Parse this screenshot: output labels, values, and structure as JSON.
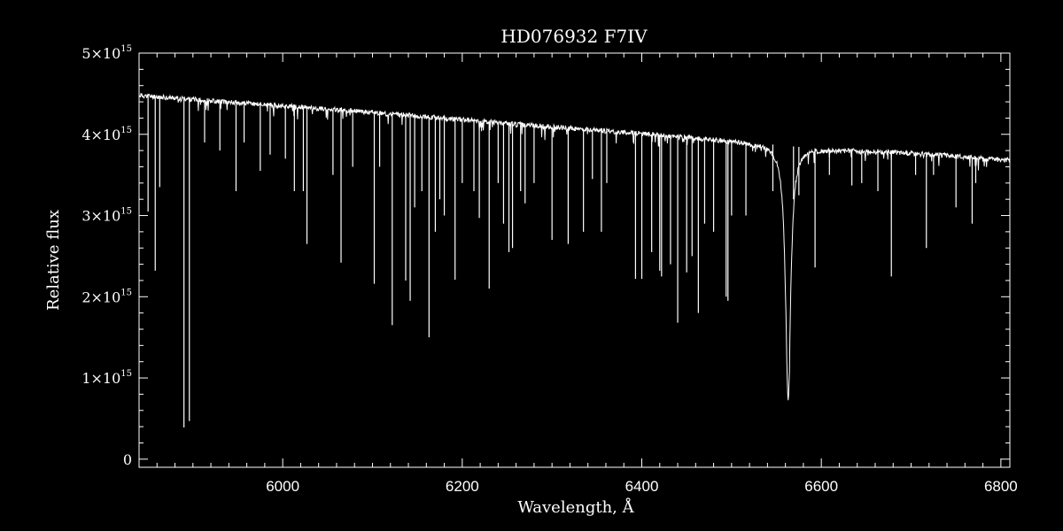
{
  "chart_data": {
    "type": "line",
    "title": "HD076932   F7IV",
    "xlabel": "Wavelength, Å",
    "ylabel": "Relative flux",
    "xlim": [
      5840,
      6810
    ],
    "ylim": [
      -100000000000000.0,
      5000000000000000.0
    ],
    "x_ticks": [
      6000,
      6200,
      6400,
      6600,
      6800
    ],
    "x_tick_labels": [
      "6000",
      "6200",
      "6400",
      "6600",
      "6800"
    ],
    "y_ticks": [
      0,
      1000000000000000.0,
      2000000000000000.0,
      3000000000000000.0,
      4000000000000000.0,
      5000000000000000.0
    ],
    "y_tick_labels": [
      {
        "mantissa": "0",
        "exponent": ""
      },
      {
        "mantissa": "1×10",
        "exponent": "15"
      },
      {
        "mantissa": "2×10",
        "exponent": "15"
      },
      {
        "mantissa": "3×10",
        "exponent": "15"
      },
      {
        "mantissa": "4×10",
        "exponent": "15"
      },
      {
        "mantissa": "5×10",
        "exponent": "15"
      }
    ],
    "grid": false,
    "series": [
      {
        "line_color": "#ffffff",
        "continuum": {
          "x": [
            5840,
            5900,
            6000,
            6100,
            6200,
            6300,
            6400,
            6500,
            6550,
            6600,
            6700,
            6810
          ],
          "y": [
            4480000000000000.0,
            4430000000000000.0,
            4350000000000000.0,
            4270000000000000.0,
            4180000000000000.0,
            4090000000000000.0,
            4010000000000000.0,
            3920000000000000.0,
            3870000000000000.0,
            3820000000000000.0,
            3770000000000000.0,
            3680000000000000.0
          ]
        },
        "h_alpha": {
          "center": 6563,
          "depth": 3120000000000000.0,
          "width": 3.5
        },
        "absorption_lines": [
          {
            "x": 5850,
            "y": 3050000000000000.0
          },
          {
            "x": 5858,
            "y": 2320000000000000.0
          },
          {
            "x": 5863,
            "y": 3350000000000000.0
          },
          {
            "x": 5890,
            "y": 390000000000000.0
          },
          {
            "x": 5896,
            "y": 470000000000000.0
          },
          {
            "x": 5913,
            "y": 3900000000000000.0
          },
          {
            "x": 5930,
            "y": 3800000000000000.0
          },
          {
            "x": 5948,
            "y": 3300000000000000.0
          },
          {
            "x": 5957,
            "y": 3900000000000000.0
          },
          {
            "x": 5975,
            "y": 3550000000000000.0
          },
          {
            "x": 5986,
            "y": 3750000000000000.0
          },
          {
            "x": 6003,
            "y": 3700000000000000.0
          },
          {
            "x": 6013,
            "y": 3300000000000000.0
          },
          {
            "x": 6023,
            "y": 3300000000000000.0
          },
          {
            "x": 6027,
            "y": 2650000000000000.0
          },
          {
            "x": 6056,
            "y": 3500000000000000.0
          },
          {
            "x": 6065,
            "y": 2420000000000000.0
          },
          {
            "x": 6078,
            "y": 3600000000000000.0
          },
          {
            "x": 6102,
            "y": 2160000000000000.0
          },
          {
            "x": 6108,
            "y": 3600000000000000.0
          },
          {
            "x": 6122,
            "y": 1650000000000000.0
          },
          {
            "x": 6137,
            "y": 2200000000000000.0
          },
          {
            "x": 6142,
            "y": 1950000000000000.0
          },
          {
            "x": 6147,
            "y": 3100000000000000.0
          },
          {
            "x": 6155,
            "y": 3300000000000000.0
          },
          {
            "x": 6163,
            "y": 1500000000000000.0
          },
          {
            "x": 6170,
            "y": 2800000000000000.0
          },
          {
            "x": 6175,
            "y": 3200000000000000.0
          },
          {
            "x": 6180,
            "y": 3000000000000000.0
          },
          {
            "x": 6192,
            "y": 2210000000000000.0
          },
          {
            "x": 6200,
            "y": 3400000000000000.0
          },
          {
            "x": 6213,
            "y": 3300000000000000.0
          },
          {
            "x": 6219,
            "y": 2970000000000000.0
          },
          {
            "x": 6230,
            "y": 2100000000000000.0
          },
          {
            "x": 6240,
            "y": 3400000000000000.0
          },
          {
            "x": 6246,
            "y": 2900000000000000.0
          },
          {
            "x": 6252,
            "y": 2550000000000000.0
          },
          {
            "x": 6256,
            "y": 2600000000000000.0
          },
          {
            "x": 6265,
            "y": 3300000000000000.0
          },
          {
            "x": 6270,
            "y": 3150000000000000.0
          },
          {
            "x": 6280,
            "y": 3400000000000000.0
          },
          {
            "x": 6300,
            "y": 2700000000000000.0
          },
          {
            "x": 6318,
            "y": 2650000000000000.0
          },
          {
            "x": 6335,
            "y": 2800000000000000.0
          },
          {
            "x": 6345,
            "y": 3450000000000000.0
          },
          {
            "x": 6355,
            "y": 2800000000000000.0
          },
          {
            "x": 6361,
            "y": 3400000000000000.0
          },
          {
            "x": 6393,
            "y": 2220000000000000.0
          },
          {
            "x": 6400,
            "y": 2220000000000000.0
          },
          {
            "x": 6411,
            "y": 2550000000000000.0
          },
          {
            "x": 6420,
            "y": 2320000000000000.0
          },
          {
            "x": 6422,
            "y": 2250000000000000.0
          },
          {
            "x": 6432,
            "y": 2400000000000000.0
          },
          {
            "x": 6440,
            "y": 1680000000000000.0
          },
          {
            "x": 6450,
            "y": 2300000000000000.0
          },
          {
            "x": 6456,
            "y": 2500000000000000.0
          },
          {
            "x": 6463,
            "y": 1800000000000000.0
          },
          {
            "x": 6470,
            "y": 2900000000000000.0
          },
          {
            "x": 6480,
            "y": 2800000000000000.0
          },
          {
            "x": 6494,
            "y": 2000000000000000.0
          },
          {
            "x": 6496,
            "y": 1950000000000000.0
          },
          {
            "x": 6500,
            "y": 3000000000000000.0
          },
          {
            "x": 6516,
            "y": 3000000000000000.0
          },
          {
            "x": 6546,
            "y": 3300000000000000.0
          },
          {
            "x": 6569,
            "y": 3200000000000000.0
          },
          {
            "x": 6575,
            "y": 3250000000000000.0
          },
          {
            "x": 6593,
            "y": 2360000000000000.0
          },
          {
            "x": 6609,
            "y": 3500000000000000.0
          },
          {
            "x": 6634,
            "y": 3370000000000000.0
          },
          {
            "x": 6645,
            "y": 3400000000000000.0
          },
          {
            "x": 6663,
            "y": 3300000000000000.0
          },
          {
            "x": 6678,
            "y": 2250000000000000.0
          },
          {
            "x": 6705,
            "y": 3500000000000000.0
          },
          {
            "x": 6717,
            "y": 2600000000000000.0
          },
          {
            "x": 6725,
            "y": 3500000000000000.0
          },
          {
            "x": 6750,
            "y": 3100000000000000.0
          },
          {
            "x": 6768,
            "y": 2900000000000000.0
          },
          {
            "x": 6772,
            "y": 3400000000000000.0
          }
        ]
      }
    ]
  }
}
